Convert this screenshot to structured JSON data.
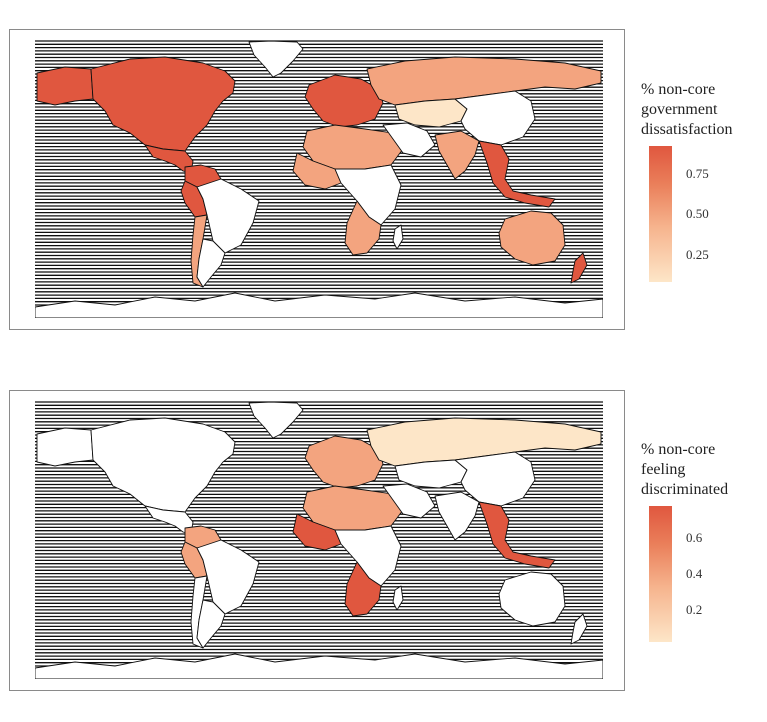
{
  "maps": [
    {
      "id": "government_dissatisfaction",
      "legend": {
        "title_lines": [
          "% non-core",
          "government",
          "dissatisfaction"
        ],
        "ticks": [
          "0.75",
          "0.50",
          "0.25"
        ],
        "tick_values": [
          0.75,
          0.5,
          0.25
        ],
        "range": [
          0.08,
          0.92
        ]
      },
      "colors": {
        "low": "#fde6c8",
        "mid": "#f3a47f",
        "high": "#e0573f",
        "missing": "#ffffff"
      },
      "regions": {
        "greenland": "missing",
        "north_america": "high",
        "alaska": "high",
        "central_america": "high",
        "colombia_venezuela": "high",
        "peru": "high",
        "chile": "mid",
        "argentina": "missing",
        "brazil": "missing",
        "russia": "mid",
        "central_asia": "low",
        "china": "missing",
        "india": "mid",
        "southeast_asia": "high",
        "australia": "mid",
        "new_zealand": "high",
        "west_africa": "mid",
        "north_africa": "mid",
        "south_africa": "mid",
        "europe": "high"
      }
    },
    {
      "id": "feeling_discriminated",
      "legend": {
        "title_lines": [
          "% non-core",
          "feeling",
          "discriminated"
        ],
        "ticks": [
          "0.6",
          "0.4",
          "0.2"
        ],
        "tick_values": [
          0.6,
          0.4,
          0.2
        ],
        "range": [
          0.02,
          0.78
        ]
      },
      "colors": {
        "low": "#fde6c8",
        "mid": "#f3a47f",
        "high": "#e0573f",
        "missing": "#ffffff"
      },
      "regions": {
        "greenland": "missing",
        "north_america": "missing",
        "alaska": "missing",
        "central_america": "missing",
        "colombia_venezuela": "mid",
        "peru": "mid",
        "chile": "missing",
        "argentina": "missing",
        "brazil": "missing",
        "russia": "low",
        "central_asia": "missing",
        "china": "missing",
        "india": "missing",
        "southeast_asia": "high",
        "australia": "missing",
        "new_zealand": "missing",
        "west_africa": "high",
        "north_africa": "mid",
        "south_africa": "high",
        "europe": "mid"
      }
    }
  ]
}
